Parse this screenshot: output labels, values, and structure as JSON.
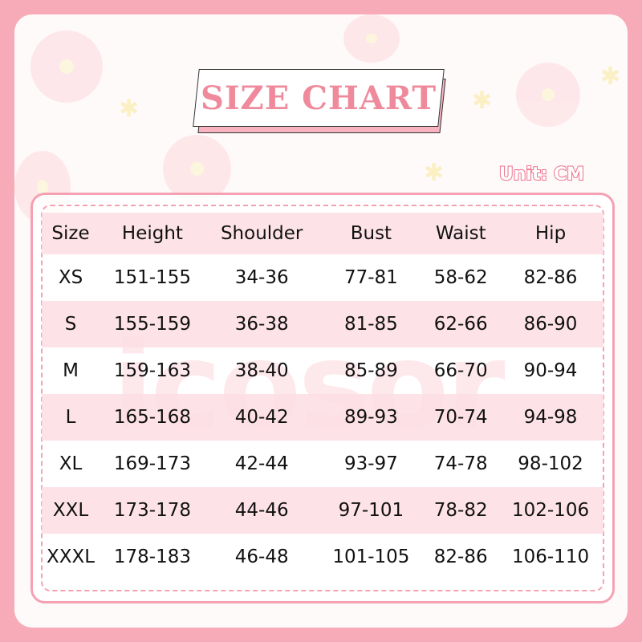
{
  "title": "SIZE CHART",
  "unit": "Unit: CM",
  "watermark": "icosor",
  "colors": {
    "accent": "#f7aab8",
    "title": "#ef8a9c",
    "row_pink": "#fddee4"
  },
  "table": {
    "headers": [
      "Size",
      "Height",
      "Shoulder",
      "Bust",
      "Waist",
      "Hip"
    ],
    "rows": [
      [
        "XS",
        "151-155",
        "34-36",
        "77-81",
        "58-62",
        "82-86"
      ],
      [
        "S",
        "155-159",
        "36-38",
        "81-85",
        "62-66",
        "86-90"
      ],
      [
        "M",
        "159-163",
        "38-40",
        "85-89",
        "66-70",
        "90-94"
      ],
      [
        "L",
        "165-168",
        "40-42",
        "89-93",
        "70-74",
        "94-98"
      ],
      [
        "XL",
        "169-173",
        "42-44",
        "93-97",
        "74-78",
        "98-102"
      ],
      [
        "XXL",
        "173-178",
        "44-46",
        "97-101",
        "78-82",
        "102-106"
      ],
      [
        "XXXL",
        "178-183",
        "46-48",
        "101-105",
        "82-86",
        "106-110"
      ]
    ]
  }
}
